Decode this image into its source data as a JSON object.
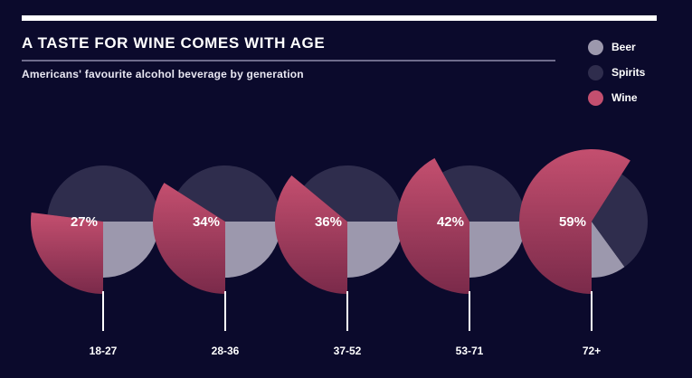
{
  "colors": {
    "background": "#0b0a2c",
    "beer": "#9c98ad",
    "spirits": "#2f2d4d",
    "wine_top": "#c44f6f",
    "wine_bottom": "#7a2a4a"
  },
  "chart_data": {
    "type": "pie",
    "title": "A TASTE FOR WINE COMES WITH AGE",
    "subtitle": "Americans' favourite alcohol beverage by generation",
    "legend": [
      "Beer",
      "Spirits",
      "Wine"
    ],
    "legend_position": "top-right",
    "categories": [
      "18-27",
      "28-36",
      "37-52",
      "53-71",
      "72+"
    ],
    "series": [
      {
        "name": "Beer",
        "values": [
          25,
          25,
          25,
          25,
          10
        ]
      },
      {
        "name": "Spirits",
        "values": [
          48,
          41,
          39,
          33,
          31
        ]
      },
      {
        "name": "Wine",
        "values": [
          27,
          34,
          36,
          42,
          59
        ]
      }
    ],
    "data_labels": [
      "27%",
      "34%",
      "36%",
      "42%",
      "59%"
    ]
  }
}
